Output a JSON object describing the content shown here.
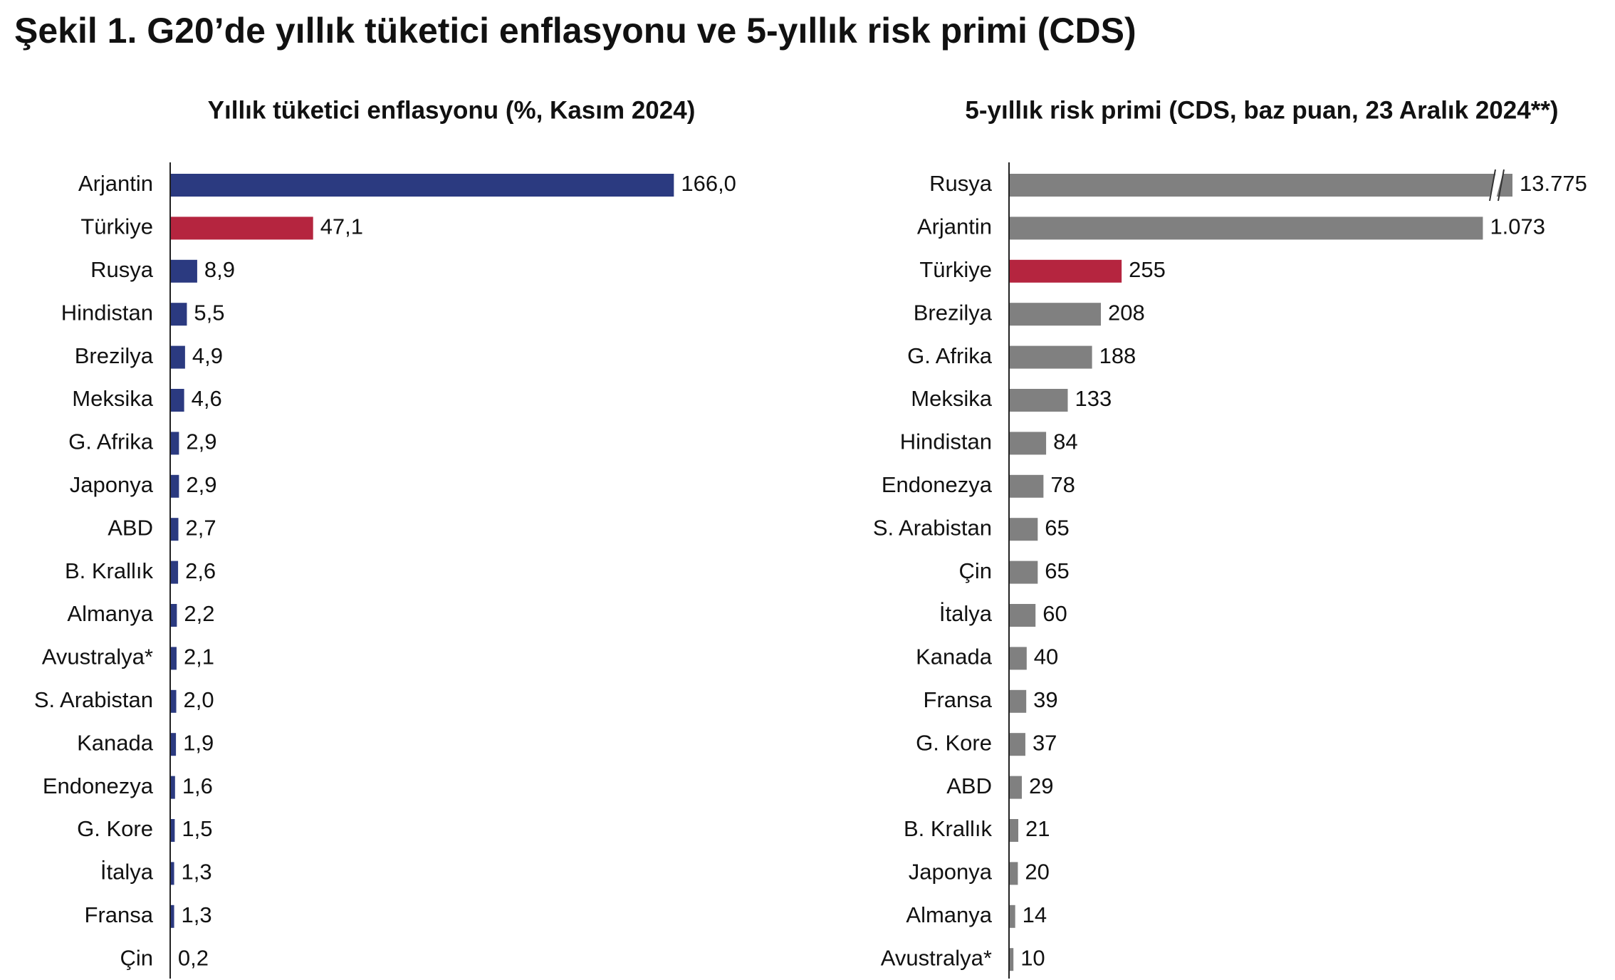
{
  "title": "Şekil 1. G20’de yıllık tüketici enflasyonu ve 5-yıllık risk primi (CDS)",
  "chart_data": [
    {
      "type": "bar",
      "orientation": "horizontal",
      "title": "Yıllık tüketici enflasyonu (%, Kasım 2024)",
      "categories": [
        "Arjantin",
        "Türkiye",
        "Rusya",
        "Hindistan",
        "Brezilya",
        "Meksika",
        "G. Afrika",
        "Japonya",
        "ABD",
        "B. Krallık",
        "Almanya",
        "Avustralya*",
        "S. Arabistan",
        "Kanada",
        "Endonezya",
        "G. Kore",
        "İtalya",
        "Fransa",
        "Çin"
      ],
      "values": [
        166.0,
        47.1,
        8.9,
        5.5,
        4.9,
        4.6,
        2.9,
        2.9,
        2.7,
        2.6,
        2.2,
        2.1,
        2.0,
        1.9,
        1.6,
        1.5,
        1.3,
        1.3,
        0.2
      ],
      "value_labels": [
        "166,0",
        "47,1",
        "8,9",
        "5,5",
        "4,9",
        "4,6",
        "2,9",
        "2,9",
        "2,7",
        "2,6",
        "2,2",
        "2,1",
        "2,0",
        "1,9",
        "1,6",
        "1,5",
        "1,3",
        "1,3",
        "0,2"
      ],
      "colors": [
        "#2b3a80",
        "#b5253f",
        "#2b3a80",
        "#2b3a80",
        "#2b3a80",
        "#2b3a80",
        "#2b3a80",
        "#2b3a80",
        "#2b3a80",
        "#2b3a80",
        "#2b3a80",
        "#2b3a80",
        "#2b3a80",
        "#2b3a80",
        "#2b3a80",
        "#2b3a80",
        "#2b3a80",
        "#2b3a80",
        "#2b3a80"
      ],
      "xlim": [
        0,
        180
      ]
    },
    {
      "type": "bar",
      "orientation": "horizontal",
      "title": "5-yıllık risk primi (CDS, baz puan, 23 Aralık 2024**)",
      "categories": [
        "Rusya",
        "Arjantin",
        "Türkiye",
        "Brezilya",
        "G. Afrika",
        "Meksika",
        "Hindistan",
        "Endonezya",
        "S. Arabistan",
        "Çin",
        "İtalya",
        "Kanada",
        "Fransa",
        "G. Kore",
        "ABD",
        "B. Krallık",
        "Japonya",
        "Almanya",
        "Avustralya*"
      ],
      "values": [
        13775,
        1073,
        255,
        208,
        188,
        133,
        84,
        78,
        65,
        65,
        60,
        40,
        39,
        37,
        29,
        21,
        20,
        14,
        10
      ],
      "value_labels": [
        "13.775",
        "1.073",
        "255",
        "208",
        "188",
        "133",
        "84",
        "78",
        "65",
        "65",
        "60",
        "40",
        "39",
        "37",
        "29",
        "21",
        "20",
        "14",
        "10"
      ],
      "colors": [
        "#808080",
        "#808080",
        "#b5253f",
        "#808080",
        "#808080",
        "#808080",
        "#808080",
        "#808080",
        "#808080",
        "#808080",
        "#808080",
        "#808080",
        "#808080",
        "#808080",
        "#808080",
        "#808080",
        "#808080",
        "#808080",
        "#808080"
      ],
      "xlim": [
        0,
        1140
      ],
      "axis_break": true
    }
  ]
}
